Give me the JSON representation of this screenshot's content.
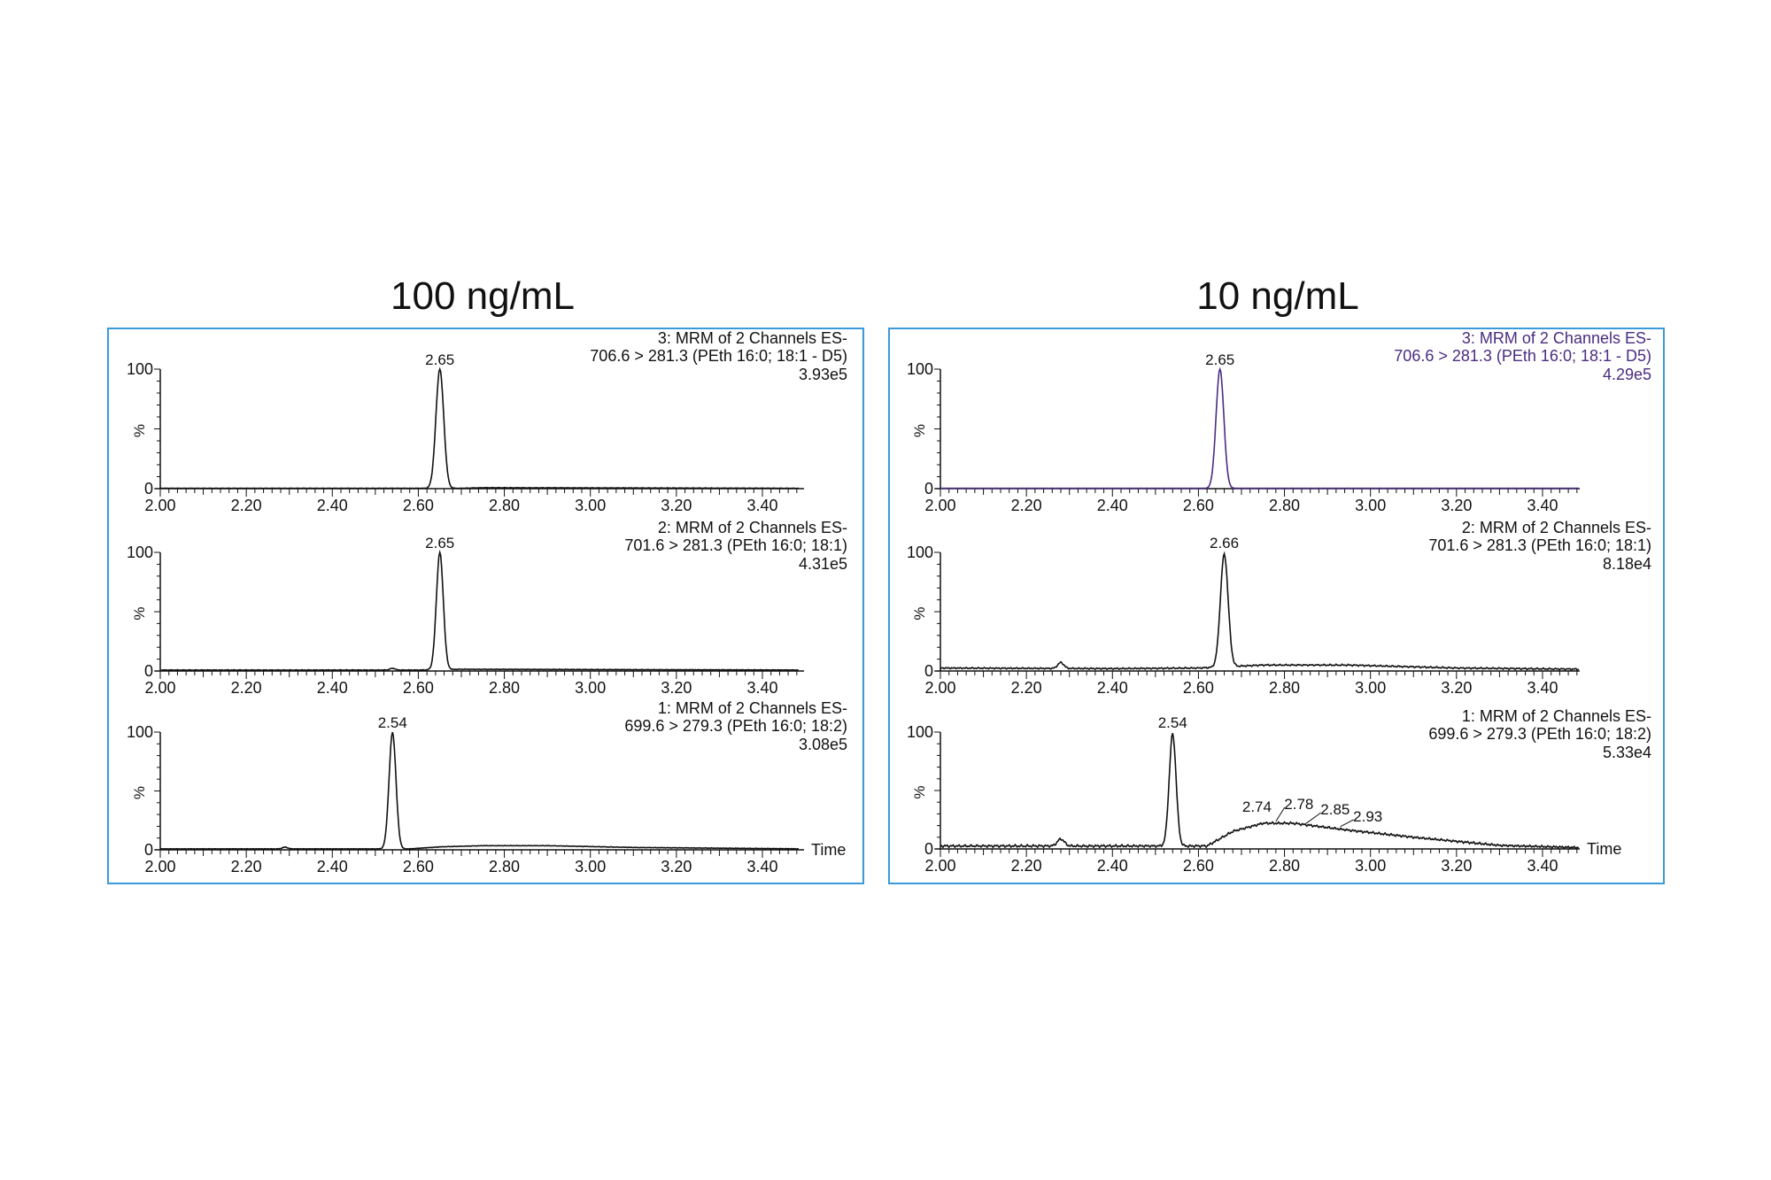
{
  "chart_data": [
    {
      "type": "line",
      "title": "100 ng/mL",
      "xlabel": "Time",
      "ylabel": "%",
      "xlim": [
        2.0,
        3.5
      ],
      "ylim": [
        0,
        100
      ],
      "xticks": [
        "2.00",
        "2.20",
        "2.40",
        "2.60",
        "2.80",
        "3.00",
        "3.20",
        "3.40"
      ],
      "yticks": [
        "0",
        "100"
      ],
      "border_color": "#3a9ad9",
      "plots": [
        {
          "channel": "3: MRM of 2 Channels ES-",
          "transition": "706.6 > 281.3 (PEth 16:0; 18:1 - D5)",
          "intensity": "3.93e5",
          "color": "#111111",
          "peaks": [
            {
              "rt": 2.65,
              "height": 100,
              "width": 0.009
            }
          ],
          "baseline": [
            [
              2.0,
              0.3
            ],
            [
              2.7,
              0.3
            ],
            [
              2.75,
              0.8
            ],
            [
              3.5,
              0.3
            ]
          ],
          "noise": 0.2,
          "labels": [
            {
              "text": "2.65",
              "rt": 2.65
            }
          ]
        },
        {
          "channel": "2: MRM of 2 Channels ES-",
          "transition": "701.6 > 281.3 (PEth 16:0; 18:1)",
          "intensity": "4.31e5",
          "color": "#111111",
          "peaks": [
            {
              "rt": 2.65,
              "height": 99,
              "width": 0.008
            },
            {
              "rt": 2.54,
              "height": 1.5,
              "width": 0.006
            }
          ],
          "baseline": [
            [
              2.0,
              0.8
            ],
            [
              2.6,
              0.8
            ],
            [
              2.7,
              1.5
            ],
            [
              3.5,
              0.8
            ]
          ],
          "noise": 0.3,
          "labels": [
            {
              "text": "2.65",
              "rt": 2.65
            }
          ]
        },
        {
          "channel": "1: MRM of 2 Channels ES-",
          "transition": "699.6 > 279.3 (PEth 16:0; 18:2)",
          "intensity": "3.08e5",
          "color": "#111111",
          "peaks": [
            {
              "rt": 2.54,
              "height": 99,
              "width": 0.008
            },
            {
              "rt": 2.29,
              "height": 1.5,
              "width": 0.006
            }
          ],
          "baseline": [
            [
              2.0,
              0.8
            ],
            [
              2.58,
              0.8
            ],
            [
              2.65,
              2.5
            ],
            [
              2.75,
              3.5
            ],
            [
              2.9,
              3.5
            ],
            [
              3.1,
              2.0
            ],
            [
              3.5,
              0.8
            ]
          ],
          "noise": 0.3,
          "labels": [
            {
              "text": "2.54",
              "rt": 2.54
            }
          ]
        }
      ]
    },
    {
      "type": "line",
      "title": "10 ng/mL",
      "xlabel": "Time",
      "ylabel": "%",
      "xlim": [
        2.0,
        3.5
      ],
      "ylim": [
        0,
        100
      ],
      "xticks": [
        "2.00",
        "2.20",
        "2.40",
        "2.60",
        "2.80",
        "3.00",
        "3.20",
        "3.40"
      ],
      "yticks": [
        "0",
        "100"
      ],
      "border_color": "#3a9ad9",
      "plots": [
        {
          "channel": "3: MRM of 2 Channels ES-",
          "transition": "706.6 > 281.3 (PEth 16:0; 18:1 - D5)",
          "intensity": "4.29e5",
          "color": "#4a2c80",
          "peaks": [
            {
              "rt": 2.65,
              "height": 100,
              "width": 0.009
            }
          ],
          "baseline": [
            [
              2.0,
              0.3
            ],
            [
              3.5,
              0.3
            ]
          ],
          "noise": 0.1,
          "labels": [
            {
              "text": "2.65",
              "rt": 2.65
            }
          ]
        },
        {
          "channel": "2: MRM of 2 Channels ES-",
          "transition": "701.6 > 281.3 (PEth 16:0; 18:1)",
          "intensity": "8.18e4",
          "color": "#111111",
          "peaks": [
            {
              "rt": 2.66,
              "height": 95,
              "width": 0.009
            },
            {
              "rt": 2.28,
              "height": 5,
              "width": 0.007
            }
          ],
          "baseline": [
            [
              2.0,
              2.5
            ],
            [
              2.4,
              2.0
            ],
            [
              2.6,
              2.5
            ],
            [
              2.75,
              5.0
            ],
            [
              2.95,
              5.0
            ],
            [
              3.2,
              2.5
            ],
            [
              3.5,
              1.5
            ]
          ],
          "noise": 0.8,
          "labels": [
            {
              "text": "2.66",
              "rt": 2.66
            }
          ]
        },
        {
          "channel": "1: MRM of 2 Channels ES-",
          "transition": "699.6 > 279.3 (PEth 16:0; 18:2)",
          "intensity": "5.33e4",
          "color": "#111111",
          "peaks": [
            {
              "rt": 2.54,
              "height": 96,
              "width": 0.008
            },
            {
              "rt": 2.28,
              "height": 6,
              "width": 0.008
            }
          ],
          "baseline": [
            [
              2.0,
              2.5
            ],
            [
              2.5,
              2.5
            ],
            [
              2.62,
              2.5
            ],
            [
              2.68,
              15
            ],
            [
              2.75,
              22
            ],
            [
              2.82,
              22
            ],
            [
              2.95,
              16
            ],
            [
              3.1,
              10
            ],
            [
              3.3,
              3
            ],
            [
              3.5,
              1
            ]
          ],
          "noise": 1.2,
          "labels": [
            {
              "text": "2.54",
              "rt": 2.54
            },
            {
              "text": "2.74",
              "rt": 2.74,
              "annot": true
            },
            {
              "text": "2.78",
              "rt": 2.78,
              "annot": true
            },
            {
              "text": "2.85",
              "rt": 2.85,
              "annot": true
            },
            {
              "text": "2.93",
              "rt": 2.93,
              "annot": true
            }
          ]
        }
      ]
    }
  ]
}
